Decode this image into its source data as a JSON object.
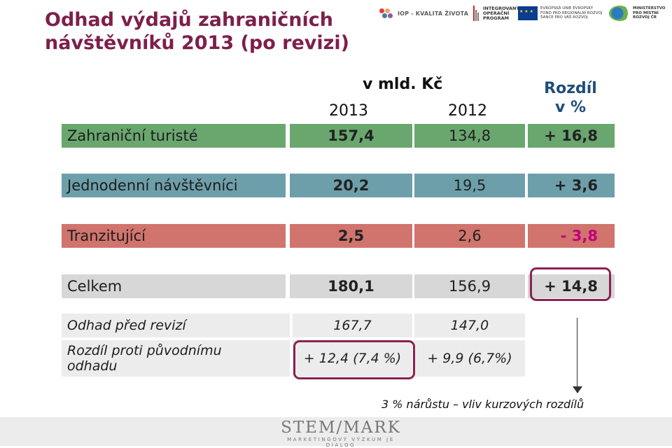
{
  "title": "Odhad výdajů zahraničních návštěvníků 2013 (po revizi)",
  "logos": {
    "iop": "IOP - KVALITA ŽIVOTA",
    "program": "INTEGROVANÝ OPERAČNÍ PROGRAM",
    "eu": "EVROPSKÁ UNIE EVROPSKÝ FOND PRO REGIONÁLNÍ ROZVOJ ŠANCE PRO VÁŠ ROZVOJ",
    "ministry": "MINISTERSTVO PRO MÍSTNÍ ROZVOJ ČR"
  },
  "header": {
    "unit": "v mld. Kč",
    "year_a": "2013",
    "year_b": "2012",
    "diff_line1": "Rozdíl",
    "diff_line2": "v %"
  },
  "rows": [
    {
      "label": "Zahraniční turisté",
      "v2013": "157,4",
      "v2012": "134,8",
      "diff": "+ 16,8"
    },
    {
      "label": "Jednodenní návštěvníci",
      "v2013": "20,2",
      "v2012": "19,5",
      "diff": "+ 3,6"
    },
    {
      "label": "Tranzitující",
      "v2013": "2,5",
      "v2012": "2,6",
      "diff": "- 3,8"
    },
    {
      "label": "Celkem",
      "v2013": "180,1",
      "v2012": "156,9",
      "diff": "+ 14,8"
    }
  ],
  "lower_rows": [
    {
      "label": "Odhad před revizí",
      "v2013": "167,7",
      "v2012": "147,0"
    },
    {
      "label_line1": "Rozdíl proti původnímu",
      "label_line2": "odhadu",
      "v2013": "+ 12,4 (7,4 %)",
      "v2012": "+ 9,9 (6,7%)"
    }
  ],
  "note": "3 % nárůstu – vliv kurzových rozdílů",
  "footer": {
    "brand": "STEM/MARK",
    "tagline": "MARKETINGOVÝ VÝZKUM JE DIALOG"
  },
  "colors": {
    "title": "#7d1f4b",
    "green_row": "#6aa76f",
    "teal_row": "#6d9fab",
    "red_row": "#d0746d",
    "grey_row": "#d7d7d7",
    "highlight": "#8b2252"
  }
}
